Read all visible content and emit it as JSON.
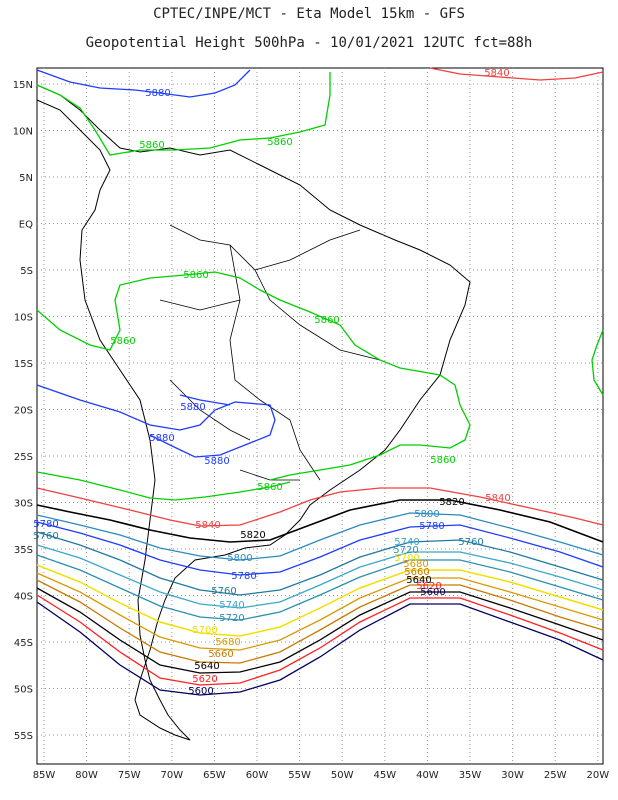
{
  "header": {
    "line1": "CPTEC/INPE/MCT -  Eta Model 15km - GFS",
    "line2": "Geopotential Height 500hPa - 10/01/2021 12UTC fct=88h"
  },
  "axes": {
    "lat_labels": [
      "15N",
      "10N",
      "5N",
      "EQ",
      "5S",
      "10S",
      "15S",
      "20S",
      "25S",
      "30S",
      "35S",
      "40S",
      "45S",
      "50S",
      "55S"
    ],
    "lon_labels": [
      "85W",
      "80W",
      "75W",
      "70W",
      "65W",
      "60W",
      "55W",
      "50W",
      "45W",
      "40W",
      "35W",
      "30W",
      "25W",
      "20W"
    ]
  },
  "contours": [
    {
      "level": "5880",
      "color": "#1e3cff"
    },
    {
      "level": "5860",
      "color": "#00d000"
    },
    {
      "level": "5840",
      "color": "#f04040"
    },
    {
      "level": "5820",
      "color": "#000000"
    },
    {
      "level": "5800",
      "color": "#2a8ac0"
    },
    {
      "level": "5780",
      "color": "#1e3cff"
    },
    {
      "level": "5760",
      "color": "#1f7aa0"
    },
    {
      "level": "5740",
      "color": "#3aa8c8"
    },
    {
      "level": "5720",
      "color": "#2a90b0"
    },
    {
      "level": "5700",
      "color": "#f0e000"
    },
    {
      "level": "5680",
      "color": "#d89a00"
    },
    {
      "level": "5660",
      "color": "#c87a00"
    },
    {
      "level": "5640",
      "color": "#000000"
    },
    {
      "level": "5620",
      "color": "#ff2020"
    },
    {
      "level": "5600",
      "color": "#000060"
    }
  ]
}
